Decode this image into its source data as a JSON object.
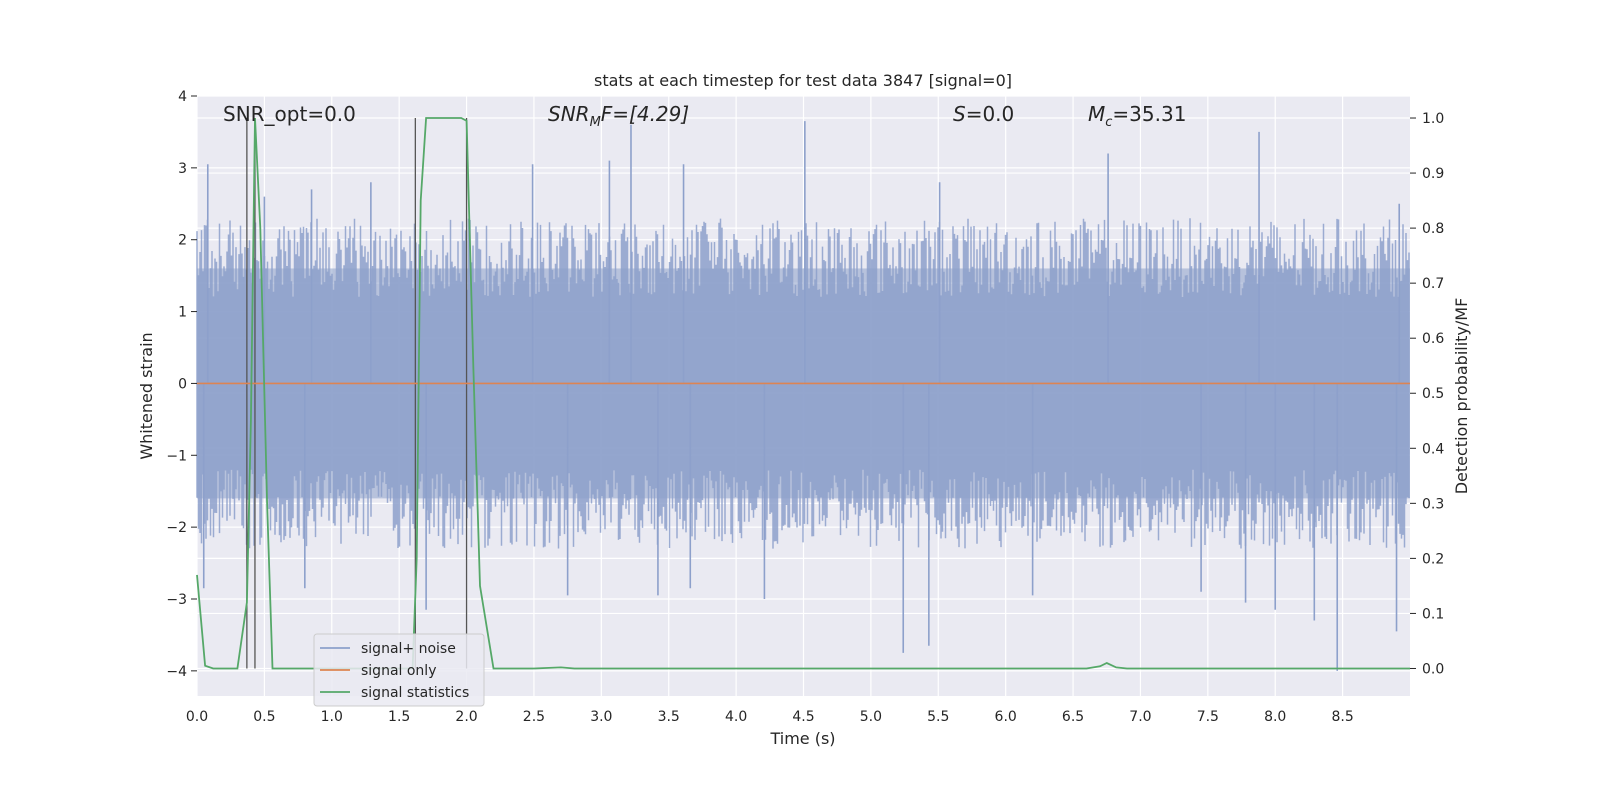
{
  "chart_data": {
    "type": "line",
    "title": "stats at each timestep for test data 3847 [signal=0]",
    "xlabel": "Time (s)",
    "ylabel": "Whitened strain",
    "ylabel_right": "Detection probability/MF",
    "xlim": [
      0.0,
      9.0
    ],
    "ylim": [
      -4.35,
      4.0
    ],
    "ylim_right": [
      -0.05,
      1.04
    ],
    "x_ticks": [
      "0.0",
      "0.5",
      "1.0",
      "1.5",
      "2.0",
      "2.5",
      "3.0",
      "3.5",
      "4.0",
      "4.5",
      "5.0",
      "5.5",
      "6.0",
      "6.5",
      "7.0",
      "7.5",
      "8.0",
      "8.5"
    ],
    "y_ticks": [
      "4",
      "3",
      "2",
      "1",
      "0",
      "−1",
      "−2",
      "−3",
      "−4"
    ],
    "y_right_ticks": [
      "1.0",
      "0.9",
      "0.8",
      "0.7",
      "0.6",
      "0.5",
      "0.4",
      "0.3",
      "0.2",
      "0.1",
      "0.0"
    ],
    "grid": true,
    "legend_placement": "lower-left",
    "annotations": {
      "snr_opt": "SNR_opt=0.0",
      "snr_mf_label": "SNR",
      "snr_mf_sub": "M",
      "snr_mf_value": "F=[4.29]",
      "s_label": "S",
      "s_value": "=0.0",
      "mc_label": "M",
      "mc_sub": "c",
      "mc_value": "=35.31"
    },
    "series": [
      {
        "name": "signal+ noise",
        "axis": "left",
        "color": "#8da0cb",
        "description_level": "noise band roughly ±1.6 with spikes up to ~3.6 and down to ~-4.0",
        "spikes": [
          [
            0.08,
            3.05
          ],
          [
            0.5,
            2.6
          ],
          [
            0.85,
            2.7
          ],
          [
            1.29,
            2.8
          ],
          [
            2.49,
            3.05
          ],
          [
            3.06,
            3.1
          ],
          [
            3.22,
            3.6
          ],
          [
            3.61,
            3.05
          ],
          [
            4.51,
            3.65
          ],
          [
            5.51,
            2.8
          ],
          [
            6.76,
            3.2
          ],
          [
            7.88,
            3.5
          ],
          [
            8.92,
            2.5
          ],
          [
            0.05,
            -2.85
          ],
          [
            0.8,
            -2.85
          ],
          [
            1.7,
            -3.15
          ],
          [
            2.75,
            -2.95
          ],
          [
            3.42,
            -2.95
          ],
          [
            3.66,
            -2.85
          ],
          [
            4.21,
            -3.0
          ],
          [
            5.24,
            -3.75
          ],
          [
            5.43,
            -3.65
          ],
          [
            6.2,
            -2.95
          ],
          [
            7.45,
            -2.9
          ],
          [
            7.78,
            -3.05
          ],
          [
            8.0,
            -3.15
          ],
          [
            8.29,
            -3.3
          ],
          [
            8.46,
            -4.0
          ],
          [
            8.9,
            -3.45
          ]
        ]
      },
      {
        "name": "signal only",
        "axis": "left",
        "color": "#dd8452",
        "x": [
          0.0,
          9.0
        ],
        "y": [
          0.0,
          0.0
        ]
      },
      {
        "name": "signal statistics",
        "axis": "right",
        "color": "#55a868",
        "x": [
          0.0,
          0.06,
          0.12,
          0.2,
          0.3,
          0.37,
          0.4,
          0.43,
          0.47,
          0.52,
          0.56,
          0.6,
          1.0,
          1.55,
          1.6,
          1.63,
          1.66,
          1.7,
          1.85,
          1.96,
          2.0,
          2.05,
          2.1,
          2.2,
          2.5,
          2.7,
          2.8,
          3.0,
          6.6,
          6.7,
          6.75,
          6.82,
          6.9,
          9.0
        ],
        "y": [
          0.17,
          0.005,
          0.0,
          0.0,
          0.0,
          0.12,
          0.45,
          1.0,
          0.8,
          0.3,
          0.0,
          0.0,
          0.0,
          0.0,
          0.0,
          0.2,
          0.85,
          1.0,
          1.0,
          1.0,
          0.995,
          0.55,
          0.15,
          0.0,
          0.0,
          0.002,
          0.0,
          0.0,
          0.0,
          0.004,
          0.01,
          0.002,
          0.0,
          0.0
        ]
      }
    ],
    "vertical_markers_s": [
      0.37,
      0.43,
      1.62,
      2.0
    ]
  },
  "legend": {
    "items": [
      {
        "label": "signal+ noise",
        "color": "#8da0cb"
      },
      {
        "label": "signal only",
        "color": "#dd8452"
      },
      {
        "label": "signal statistics",
        "color": "#55a868"
      }
    ]
  }
}
